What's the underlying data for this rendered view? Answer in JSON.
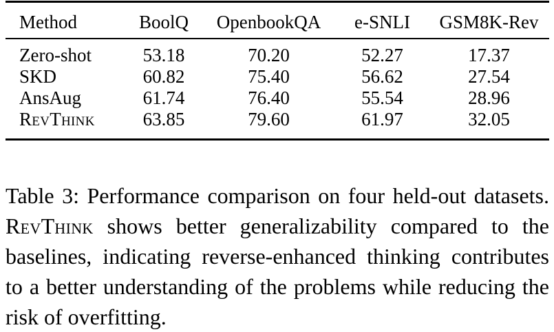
{
  "table": {
    "headers": [
      "Method",
      "BoolQ",
      "OpenbookQA",
      "e-SNLI",
      "GSM8K-Rev"
    ],
    "rows": [
      {
        "method": "Zero-shot",
        "values": [
          "53.18",
          "70.20",
          "52.27",
          "17.37"
        ]
      },
      {
        "method": "SKD",
        "values": [
          "60.82",
          "75.40",
          "56.62",
          "27.54"
        ]
      },
      {
        "method": "AnsAug",
        "values": [
          "61.74",
          "76.40",
          "55.54",
          "28.96"
        ]
      },
      {
        "method": "RevThink",
        "values": [
          "63.85",
          "79.60",
          "61.97",
          "32.05"
        ]
      }
    ]
  },
  "caption": {
    "label": "Table 3:",
    "text_1": "Performance comparison on four held-out datasets.",
    "method_name": "RevThink",
    "text_2": "shows better generalizability compared to the baselines, indicating reverse-enhanced thinking contributes to a better understanding of the problems while reducing the risk of overfitting."
  }
}
